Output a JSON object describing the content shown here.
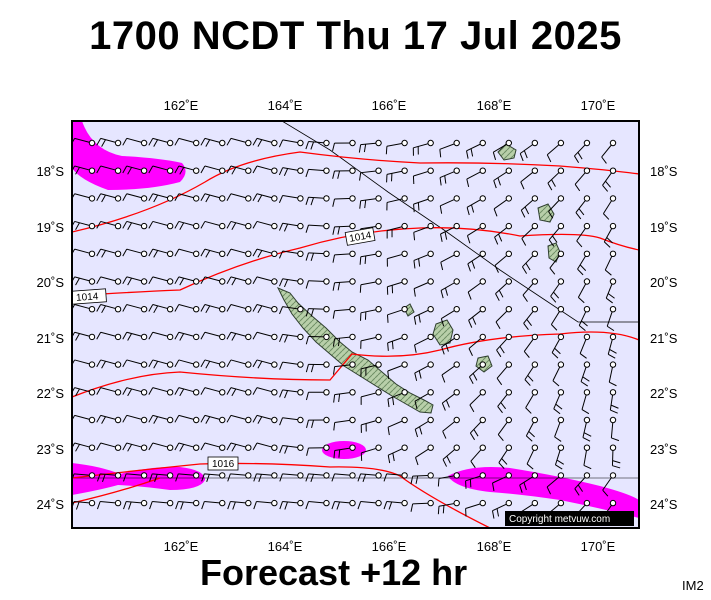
{
  "header": {
    "title": "1700 NCDT Thu 17 Jul 2025"
  },
  "footer": {
    "forecast_label": "Forecast +12 hr",
    "image_id": "IM2"
  },
  "copyright": "Copyright metvuw.com",
  "map": {
    "lon_labels": [
      {
        "lon": 162,
        "label": "162˚E"
      },
      {
        "lon": 164,
        "label": "164˚E"
      },
      {
        "lon": 166,
        "label": "166˚E"
      },
      {
        "lon": 168,
        "label": "168˚E"
      },
      {
        "lon": 170,
        "label": "170˚E"
      }
    ],
    "lat_labels": [
      {
        "lat": -18,
        "label": "18˚S"
      },
      {
        "lat": -19,
        "label": "19˚S"
      },
      {
        "lat": -20,
        "label": "20˚S"
      },
      {
        "lat": -21,
        "label": "21˚S"
      },
      {
        "lat": -22,
        "label": "22˚S"
      },
      {
        "lat": -23,
        "label": "23˚S"
      },
      {
        "lat": -24,
        "label": "24˚S"
      }
    ],
    "isobar_labels": [
      "1014",
      "1014",
      "1016"
    ],
    "colors": {
      "ocean": "#e6e6ff",
      "land": "#a9c49b",
      "isobar": "#ff0000",
      "wind_highlight": "#ff00ff",
      "barb": "#000000"
    }
  }
}
